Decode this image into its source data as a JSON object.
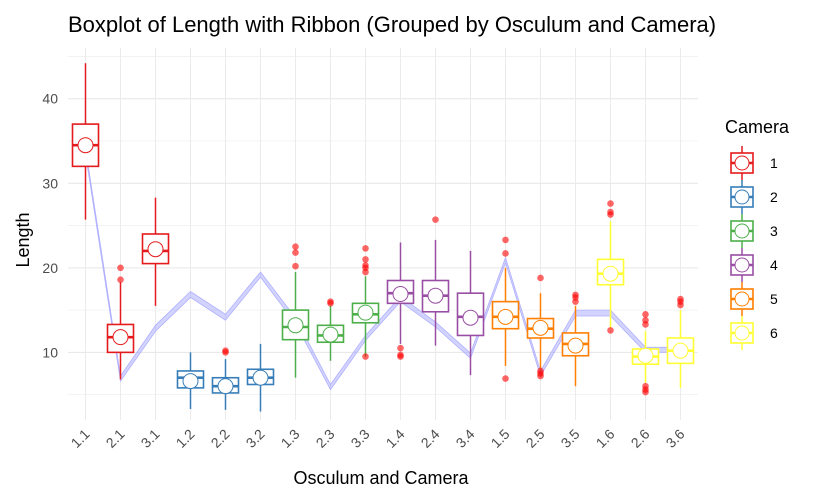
{
  "chart_data": {
    "type": "boxplot",
    "title": "Boxplot of Length with Ribbon (Grouped by Osculum and Camera)",
    "xlabel": "Osculum and Camera",
    "ylabel": "Length",
    "ylim": [
      2,
      46
    ],
    "yticks": [
      10,
      20,
      30,
      40
    ],
    "categories": [
      "1.1",
      "2.1",
      "3.1",
      "1.2",
      "2.2",
      "3.2",
      "1.3",
      "2.3",
      "3.3",
      "1.4",
      "2.4",
      "3.4",
      "1.5",
      "2.5",
      "3.5",
      "1.6",
      "2.6",
      "3.6"
    ],
    "legend": {
      "title": "Camera",
      "entries": [
        {
          "label": "1",
          "color": "#e41a1c"
        },
        {
          "label": "2",
          "color": "#377eb8"
        },
        {
          "label": "3",
          "color": "#4daf4a"
        },
        {
          "label": "4",
          "color": "#984ea3"
        },
        {
          "label": "5",
          "color": "#ff7f00"
        },
        {
          "label": "6",
          "color": "#ffff33"
        }
      ]
    },
    "boxes": [
      {
        "group": "1.1",
        "camera": "1",
        "min": 25.7,
        "q1": 32.0,
        "median": 34.5,
        "q3": 37.0,
        "max": 44.2,
        "mean": 34.5,
        "outliers": []
      },
      {
        "group": "2.1",
        "camera": "1",
        "min": 6.8,
        "q1": 10.0,
        "median": 11.8,
        "q3": 13.3,
        "max": 18.3,
        "mean": 11.8,
        "outliers": [
          18.6,
          20.0
        ]
      },
      {
        "group": "3.1",
        "camera": "1",
        "min": 15.5,
        "q1": 20.5,
        "median": 22.0,
        "q3": 24.0,
        "max": 28.3,
        "mean": 22.2,
        "outliers": []
      },
      {
        "group": "1.2",
        "camera": "2",
        "min": 3.3,
        "q1": 5.8,
        "median": 7.0,
        "q3": 7.8,
        "max": 10.0,
        "mean": 6.6,
        "outliers": []
      },
      {
        "group": "2.2",
        "camera": "2",
        "min": 3.2,
        "q1": 5.2,
        "median": 6.0,
        "q3": 7.0,
        "max": 9.2,
        "mean": 6.0,
        "outliers": [
          10.0,
          10.2
        ]
      },
      {
        "group": "3.2",
        "camera": "2",
        "min": 3.0,
        "q1": 6.2,
        "median": 7.0,
        "q3": 8.0,
        "max": 11.0,
        "mean": 7.0,
        "outliers": []
      },
      {
        "group": "1.3",
        "camera": "3",
        "min": 7.0,
        "q1": 11.5,
        "median": 13.0,
        "q3": 15.0,
        "max": 19.5,
        "mean": 13.2,
        "outliers": [
          20.2,
          21.8,
          22.5
        ]
      },
      {
        "group": "2.3",
        "camera": "3",
        "min": 9.0,
        "q1": 11.2,
        "median": 12.0,
        "q3": 13.2,
        "max": 15.5,
        "mean": 12.1,
        "outliers": [
          15.8,
          16.0
        ]
      },
      {
        "group": "3.3",
        "camera": "3",
        "min": 9.5,
        "q1": 13.5,
        "median": 14.5,
        "q3": 15.8,
        "max": 19.0,
        "mean": 14.7,
        "outliers": [
          9.5,
          19.5,
          20.0,
          20.3,
          21.0,
          22.3
        ]
      },
      {
        "group": "1.4",
        "camera": "4",
        "min": 11.0,
        "q1": 15.8,
        "median": 17.0,
        "q3": 18.5,
        "max": 23.0,
        "mean": 16.9,
        "outliers": [
          9.5,
          9.7,
          10.5
        ]
      },
      {
        "group": "2.4",
        "camera": "4",
        "min": 10.8,
        "q1": 14.8,
        "median": 16.7,
        "q3": 18.5,
        "max": 23.3,
        "mean": 16.7,
        "outliers": [
          25.7
        ]
      },
      {
        "group": "3.4",
        "camera": "4",
        "min": 7.3,
        "q1": 12.0,
        "median": 14.2,
        "q3": 17.0,
        "max": 22.0,
        "mean": 14.1,
        "outliers": []
      },
      {
        "group": "1.5",
        "camera": "5",
        "min": 8.4,
        "q1": 12.8,
        "median": 14.2,
        "q3": 16.0,
        "max": 20.0,
        "mean": 14.2,
        "outliers": [
          6.9,
          21.7,
          23.3
        ]
      },
      {
        "group": "2.5",
        "camera": "5",
        "min": 8.0,
        "q1": 11.7,
        "median": 12.8,
        "q3": 14.0,
        "max": 17.0,
        "mean": 12.9,
        "outliers": [
          7.2,
          7.5,
          7.8,
          18.8
        ]
      },
      {
        "group": "3.5",
        "camera": "5",
        "min": 6.0,
        "q1": 9.6,
        "median": 11.0,
        "q3": 12.3,
        "max": 15.5,
        "mean": 10.8,
        "outliers": [
          16.0,
          16.5,
          16.8
        ]
      },
      {
        "group": "1.6",
        "camera": "6",
        "min": 12.8,
        "q1": 18.0,
        "median": 19.3,
        "q3": 21.0,
        "max": 25.5,
        "mean": 19.3,
        "outliers": [
          12.6,
          26.3,
          26.6,
          27.6
        ]
      },
      {
        "group": "2.6",
        "camera": "6",
        "min": 6.4,
        "q1": 8.6,
        "median": 9.5,
        "q3": 10.4,
        "max": 12.5,
        "mean": 9.6,
        "outliers": [
          5.3,
          5.6,
          6.0,
          13.3,
          13.8,
          14.5
        ]
      },
      {
        "group": "3.6",
        "camera": "6",
        "min": 5.8,
        "q1": 8.7,
        "median": 10.2,
        "q3": 11.7,
        "max": 15.0,
        "mean": 10.2,
        "outliers": [
          15.6,
          16.0,
          16.3
        ]
      }
    ],
    "ribbon": {
      "lower": [
        33.5,
        6.6,
        12.5,
        16.5,
        13.8,
        18.9,
        13.4,
        5.6,
        11.4,
        16.0,
        13.0,
        9.3,
        20.6,
        7.2,
        14.3,
        14.3,
        10.0,
        10.0
      ],
      "upper": [
        34.2,
        7.2,
        13.2,
        17.2,
        14.5,
        19.5,
        14.1,
        6.2,
        12.0,
        16.6,
        13.6,
        9.9,
        21.2,
        7.8,
        15.0,
        15.0,
        10.6,
        10.6
      ]
    }
  }
}
